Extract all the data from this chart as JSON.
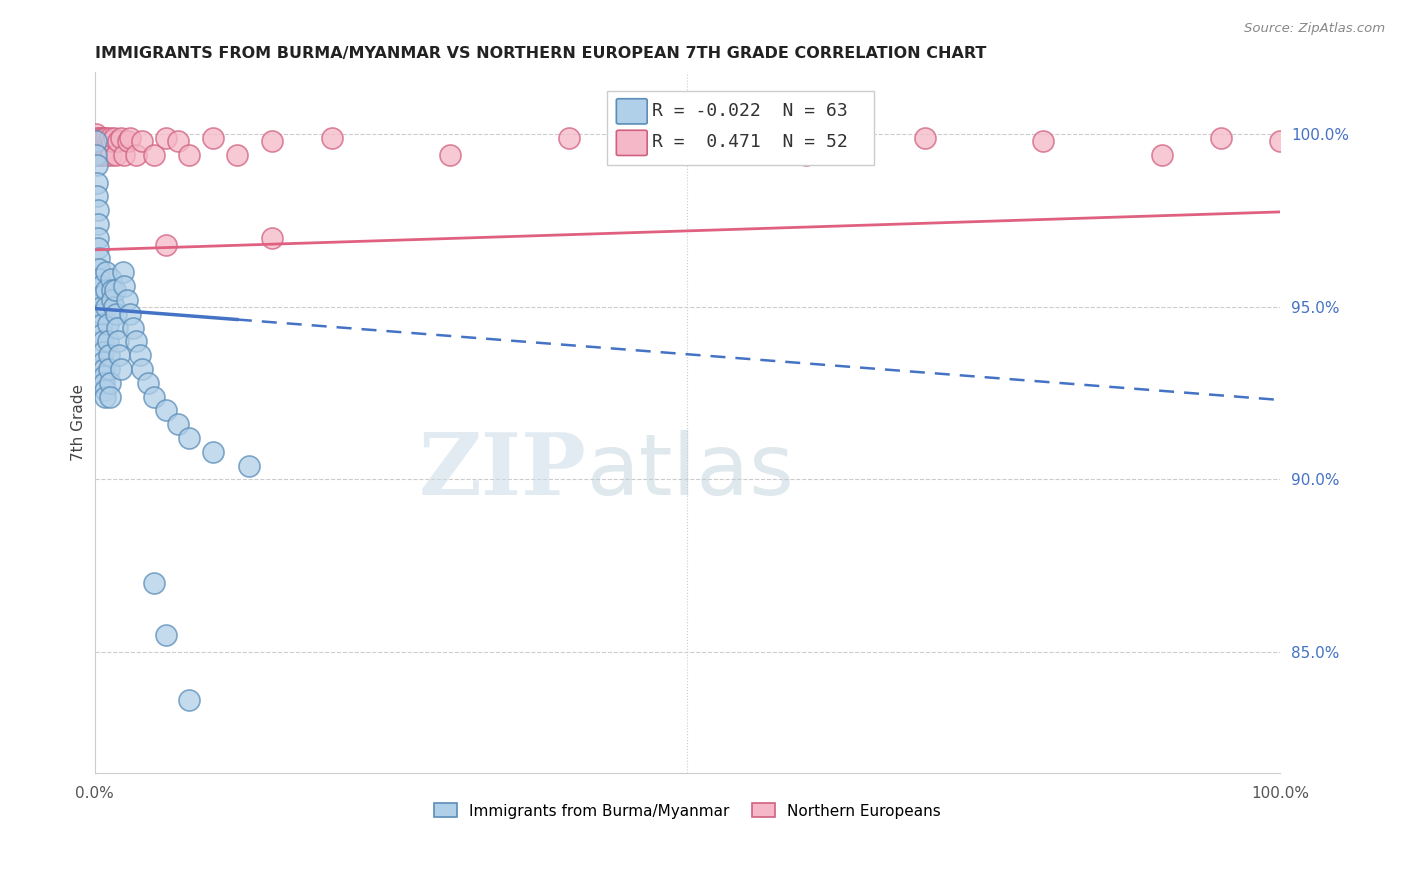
{
  "title": "IMMIGRANTS FROM BURMA/MYANMAR VS NORTHERN EUROPEAN 7TH GRADE CORRELATION CHART",
  "source": "Source: ZipAtlas.com",
  "ylabel": "7th Grade",
  "watermark_zip": "ZIP",
  "watermark_atlas": "atlas",
  "legend_blue_r": "-0.022",
  "legend_blue_n": "63",
  "legend_pink_r": "0.471",
  "legend_pink_n": "52",
  "blue_face": "#b0cfe8",
  "blue_edge": "#5b8db8",
  "pink_face": "#f5b8c8",
  "pink_edge": "#d06080",
  "blue_line_color": "#4472c4",
  "pink_line_color": "#e06080",
  "grid_color": "#cccccc",
  "right_yticks": [
    1.0,
    0.95,
    0.9,
    0.85
  ],
  "right_ylabels": [
    "100.0%",
    "95.0%",
    "90.0%",
    "85.0%"
  ],
  "right_tick_color": "#4472c4",
  "xlim": [
    0.0,
    1.0
  ],
  "ylim": [
    0.815,
    1.018
  ],
  "blue_trend_x0": 0.0,
  "blue_trend_x_solid_end": 0.12,
  "blue_trend_x1": 1.0,
  "blue_trend_y0": 0.9495,
  "blue_trend_y1": 0.923,
  "pink_trend_x0": 0.0,
  "pink_trend_x1": 1.0,
  "pink_trend_y0": 0.9665,
  "pink_trend_y1": 0.9775,
  "blue_scatter_x": [
    0.001,
    0.001,
    0.002,
    0.002,
    0.002,
    0.003,
    0.003,
    0.003,
    0.003,
    0.004,
    0.004,
    0.004,
    0.005,
    0.005,
    0.005,
    0.006,
    0.006,
    0.006,
    0.007,
    0.007,
    0.007,
    0.008,
    0.008,
    0.008,
    0.009,
    0.009,
    0.01,
    0.01,
    0.01,
    0.011,
    0.011,
    0.012,
    0.012,
    0.013,
    0.013,
    0.014,
    0.015,
    0.015,
    0.016,
    0.017,
    0.018,
    0.019,
    0.02,
    0.021,
    0.022,
    0.024,
    0.025,
    0.027,
    0.03,
    0.032,
    0.035,
    0.038,
    0.04,
    0.045,
    0.05,
    0.06,
    0.07,
    0.08,
    0.1,
    0.13,
    0.05,
    0.06,
    0.08
  ],
  "blue_scatter_y": [
    0.998,
    0.994,
    0.991,
    0.986,
    0.982,
    0.978,
    0.974,
    0.97,
    0.967,
    0.964,
    0.961,
    0.958,
    0.956,
    0.953,
    0.95,
    0.948,
    0.945,
    0.942,
    0.94,
    0.937,
    0.934,
    0.932,
    0.93,
    0.928,
    0.926,
    0.924,
    0.96,
    0.955,
    0.95,
    0.945,
    0.94,
    0.936,
    0.932,
    0.928,
    0.924,
    0.958,
    0.955,
    0.952,
    0.95,
    0.955,
    0.948,
    0.944,
    0.94,
    0.936,
    0.932,
    0.96,
    0.956,
    0.952,
    0.948,
    0.944,
    0.94,
    0.936,
    0.932,
    0.928,
    0.924,
    0.92,
    0.916,
    0.912,
    0.908,
    0.904,
    0.87,
    0.855,
    0.836
  ],
  "pink_scatter_x": [
    0.001,
    0.001,
    0.002,
    0.002,
    0.003,
    0.003,
    0.004,
    0.004,
    0.005,
    0.005,
    0.006,
    0.006,
    0.007,
    0.007,
    0.008,
    0.008,
    0.009,
    0.01,
    0.01,
    0.011,
    0.012,
    0.013,
    0.014,
    0.015,
    0.016,
    0.018,
    0.02,
    0.022,
    0.025,
    0.028,
    0.03,
    0.035,
    0.04,
    0.05,
    0.06,
    0.07,
    0.08,
    0.1,
    0.12,
    0.15,
    0.2,
    0.3,
    0.4,
    0.5,
    0.6,
    0.7,
    0.8,
    0.9,
    0.95,
    1.0,
    0.06,
    0.15
  ],
  "pink_scatter_y": [
    1.0,
    0.997,
    0.999,
    0.996,
    0.998,
    0.994,
    0.999,
    0.996,
    0.998,
    0.994,
    0.999,
    0.996,
    0.998,
    0.994,
    0.999,
    0.996,
    0.998,
    0.999,
    0.994,
    0.998,
    0.996,
    0.999,
    0.994,
    0.998,
    0.999,
    0.994,
    0.998,
    0.999,
    0.994,
    0.998,
    0.999,
    0.994,
    0.998,
    0.994,
    0.999,
    0.998,
    0.994,
    0.999,
    0.994,
    0.998,
    0.999,
    0.994,
    0.999,
    0.998,
    0.994,
    0.999,
    0.998,
    0.994,
    0.999,
    0.998,
    0.968,
    0.97
  ],
  "bottom_legend": [
    "Immigrants from Burma/Myanmar",
    "Northern Europeans"
  ]
}
